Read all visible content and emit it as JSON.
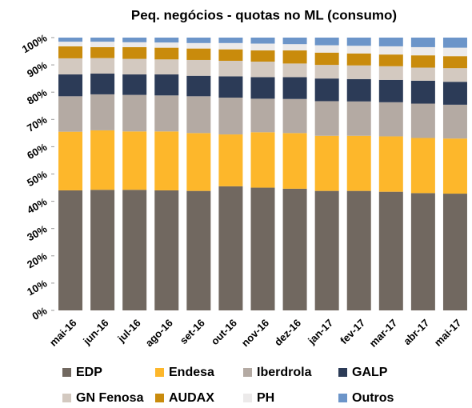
{
  "chart_data": {
    "type": "stacked_bar",
    "title": "Peq. negócios - quotas no ML (consumo)",
    "categories": [
      "mai-16",
      "jun-16",
      "jul-16",
      "ago-16",
      "set-16",
      "out-16",
      "nov-16",
      "dez-16",
      "jan-17",
      "fev-17",
      "mar-17",
      "abr-17",
      "mai-17"
    ],
    "series": [
      {
        "name": "EDP",
        "color": "#716860",
        "values": [
          44,
          44.2,
          44.2,
          44,
          43.8,
          45.5,
          45,
          44.6,
          43.8,
          43.8,
          43.5,
          43,
          42.8
        ]
      },
      {
        "name": "Endesa",
        "color": "#fdb72b",
        "values": [
          21.5,
          21.8,
          21.4,
          21.6,
          21.2,
          19,
          20.3,
          20.4,
          20.2,
          20.2,
          20.3,
          20.2,
          20.2
        ]
      },
      {
        "name": "Iberdrola",
        "color": "#b4aaa3",
        "values": [
          13,
          13.2,
          13.4,
          13.2,
          13.5,
          13.5,
          12.3,
          12.5,
          12.7,
          12.6,
          12.5,
          12.6,
          12.4
        ]
      },
      {
        "name": "GALP",
        "color": "#2c3b57",
        "values": [
          8,
          7.6,
          7.5,
          7.7,
          7.5,
          7.8,
          7.9,
          8,
          8.3,
          8.2,
          8.2,
          8.4,
          8.4
        ]
      },
      {
        "name": "GN Fenosa",
        "color": "#d3c9c0",
        "values": [
          5.9,
          5.7,
          5.7,
          5.5,
          5.8,
          5.7,
          5.7,
          5,
          5,
          5,
          5,
          4.8,
          5
        ]
      },
      {
        "name": "AUDAX",
        "color": "#c98b0c",
        "values": [
          4.4,
          4,
          4.3,
          4.3,
          4.2,
          4.2,
          4.1,
          4.8,
          4.5,
          4.4,
          4.3,
          4.5,
          4.4
        ]
      },
      {
        "name": "PH",
        "color": "#eceaea",
        "values": [
          1.7,
          2,
          1.8,
          1.9,
          2,
          2.3,
          2.5,
          2.3,
          2.7,
          2.8,
          3,
          3,
          3.1
        ]
      },
      {
        "name": "Outros",
        "color": "#6c95c9",
        "values": [
          1.5,
          1.5,
          1.7,
          1.8,
          2,
          2,
          2.2,
          2.4,
          2.8,
          3,
          3.2,
          3.5,
          3.7
        ]
      }
    ],
    "ylim": [
      0,
      100
    ],
    "yticks": [
      {
        "value": 0,
        "label": "0%"
      },
      {
        "value": 10,
        "label": "10%"
      },
      {
        "value": 20,
        "label": "20%"
      },
      {
        "value": 30,
        "label": "30%"
      },
      {
        "value": 40,
        "label": "40%"
      },
      {
        "value": 50,
        "label": "50%"
      },
      {
        "value": 60,
        "label": "60%"
      },
      {
        "value": 70,
        "label": "70%"
      },
      {
        "value": 80,
        "label": "80%"
      },
      {
        "value": 90,
        "label": "90%"
      },
      {
        "value": 100,
        "label": "100%"
      }
    ],
    "grid": false,
    "legend": "bottom"
  }
}
